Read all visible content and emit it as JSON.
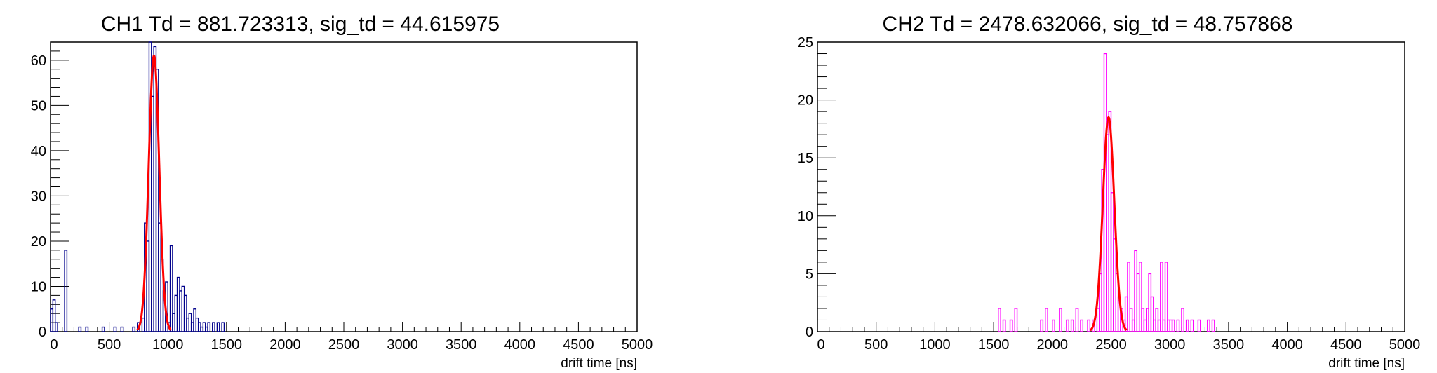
{
  "chart_data": [
    {
      "type": "histogram",
      "title": "CH1 Td = 881.723313, sig_td = 44.615975",
      "xlabel": "drift time [ns]",
      "ylabel": "",
      "xlim": [
        0,
        5000
      ],
      "ylim": [
        0,
        64
      ],
      "x_ticks": [
        "0",
        "500",
        "1000",
        "1500",
        "2000",
        "2500",
        "3000",
        "3500",
        "4000",
        "4500",
        "5000"
      ],
      "y_ticks": [
        "0",
        "10",
        "20",
        "30",
        "40",
        "50",
        "60"
      ],
      "y_tick_values": [
        0,
        10,
        20,
        30,
        40,
        50,
        60
      ],
      "grid": false,
      "histogram_color": "#00008b",
      "fit_color": "#ff0000",
      "bin_width": 20,
      "bins": [
        {
          "x": 0,
          "y": 5
        },
        {
          "x": 20,
          "y": 7
        },
        {
          "x": 40,
          "y": 2
        },
        {
          "x": 60,
          "y": 0
        },
        {
          "x": 80,
          "y": 0
        },
        {
          "x": 100,
          "y": 0
        },
        {
          "x": 120,
          "y": 18
        },
        {
          "x": 240,
          "y": 1
        },
        {
          "x": 300,
          "y": 1
        },
        {
          "x": 440,
          "y": 1
        },
        {
          "x": 540,
          "y": 1
        },
        {
          "x": 600,
          "y": 1
        },
        {
          "x": 700,
          "y": 1
        },
        {
          "x": 740,
          "y": 2
        },
        {
          "x": 780,
          "y": 3
        },
        {
          "x": 800,
          "y": 24
        },
        {
          "x": 820,
          "y": 20
        },
        {
          "x": 840,
          "y": 65
        },
        {
          "x": 860,
          "y": 52
        },
        {
          "x": 880,
          "y": 63
        },
        {
          "x": 900,
          "y": 58
        },
        {
          "x": 920,
          "y": 24
        },
        {
          "x": 940,
          "y": 16
        },
        {
          "x": 960,
          "y": 9
        },
        {
          "x": 980,
          "y": 11
        },
        {
          "x": 1000,
          "y": 2
        },
        {
          "x": 1020,
          "y": 19
        },
        {
          "x": 1040,
          "y": 4
        },
        {
          "x": 1060,
          "y": 8
        },
        {
          "x": 1080,
          "y": 12
        },
        {
          "x": 1100,
          "y": 9
        },
        {
          "x": 1120,
          "y": 10
        },
        {
          "x": 1140,
          "y": 8
        },
        {
          "x": 1160,
          "y": 3
        },
        {
          "x": 1180,
          "y": 4
        },
        {
          "x": 1200,
          "y": 2
        },
        {
          "x": 1220,
          "y": 5
        },
        {
          "x": 1240,
          "y": 3
        },
        {
          "x": 1260,
          "y": 2
        },
        {
          "x": 1280,
          "y": 1
        },
        {
          "x": 1300,
          "y": 2
        },
        {
          "x": 1320,
          "y": 1
        },
        {
          "x": 1340,
          "y": 2
        },
        {
          "x": 1380,
          "y": 2
        },
        {
          "x": 1420,
          "y": 2
        },
        {
          "x": 1460,
          "y": 2
        }
      ],
      "fit": {
        "mean": 881.723313,
        "sigma": 44.615975,
        "amplitude": 61
      }
    },
    {
      "type": "histogram",
      "title": "CH2 Td = 2478.632066, sig_td = 48.757868",
      "xlabel": "drift time [ns]",
      "ylabel": "",
      "xlim": [
        0,
        5000
      ],
      "ylim": [
        0,
        25
      ],
      "x_ticks": [
        "0",
        "500",
        "1000",
        "1500",
        "2000",
        "2500",
        "3000",
        "3500",
        "4000",
        "4500",
        "5000"
      ],
      "y_ticks": [
        "0",
        "5",
        "10",
        "15",
        "20",
        "25"
      ],
      "y_tick_values": [
        0,
        5,
        10,
        15,
        20,
        25
      ],
      "grid": false,
      "histogram_color": "#ff00ff",
      "fit_color": "#ff0000",
      "bin_width": 20,
      "bins": [
        {
          "x": 1540,
          "y": 2
        },
        {
          "x": 1580,
          "y": 1
        },
        {
          "x": 1640,
          "y": 1
        },
        {
          "x": 1680,
          "y": 2
        },
        {
          "x": 1900,
          "y": 1
        },
        {
          "x": 1940,
          "y": 2
        },
        {
          "x": 2000,
          "y": 1
        },
        {
          "x": 2060,
          "y": 2
        },
        {
          "x": 2120,
          "y": 1
        },
        {
          "x": 2160,
          "y": 1
        },
        {
          "x": 2200,
          "y": 2
        },
        {
          "x": 2240,
          "y": 1
        },
        {
          "x": 2300,
          "y": 1
        },
        {
          "x": 2340,
          "y": 1
        },
        {
          "x": 2380,
          "y": 2
        },
        {
          "x": 2400,
          "y": 5
        },
        {
          "x": 2420,
          "y": 14
        },
        {
          "x": 2440,
          "y": 24
        },
        {
          "x": 2460,
          "y": 17
        },
        {
          "x": 2480,
          "y": 19
        },
        {
          "x": 2500,
          "y": 12
        },
        {
          "x": 2520,
          "y": 8
        },
        {
          "x": 2540,
          "y": 5
        },
        {
          "x": 2560,
          "y": 3
        },
        {
          "x": 2580,
          "y": 2
        },
        {
          "x": 2600,
          "y": 1
        },
        {
          "x": 2620,
          "y": 3
        },
        {
          "x": 2640,
          "y": 6
        },
        {
          "x": 2660,
          "y": 2
        },
        {
          "x": 2680,
          "y": 1
        },
        {
          "x": 2700,
          "y": 7
        },
        {
          "x": 2720,
          "y": 5
        },
        {
          "x": 2740,
          "y": 6
        },
        {
          "x": 2760,
          "y": 2
        },
        {
          "x": 2780,
          "y": 1
        },
        {
          "x": 2800,
          "y": 2
        },
        {
          "x": 2820,
          "y": 5
        },
        {
          "x": 2840,
          "y": 3
        },
        {
          "x": 2860,
          "y": 1
        },
        {
          "x": 2880,
          "y": 2
        },
        {
          "x": 2900,
          "y": 1
        },
        {
          "x": 2920,
          "y": 6
        },
        {
          "x": 2940,
          "y": 1
        },
        {
          "x": 2960,
          "y": 6
        },
        {
          "x": 2980,
          "y": 1
        },
        {
          "x": 3000,
          "y": 1
        },
        {
          "x": 3020,
          "y": 1
        },
        {
          "x": 3060,
          "y": 1
        },
        {
          "x": 3100,
          "y": 2
        },
        {
          "x": 3140,
          "y": 1
        },
        {
          "x": 3180,
          "y": 1
        },
        {
          "x": 3240,
          "y": 1
        },
        {
          "x": 3320,
          "y": 1
        },
        {
          "x": 3360,
          "y": 1
        }
      ],
      "fit": {
        "mean": 2478.632066,
        "sigma": 48.757868,
        "amplitude": 18.5
      }
    }
  ]
}
